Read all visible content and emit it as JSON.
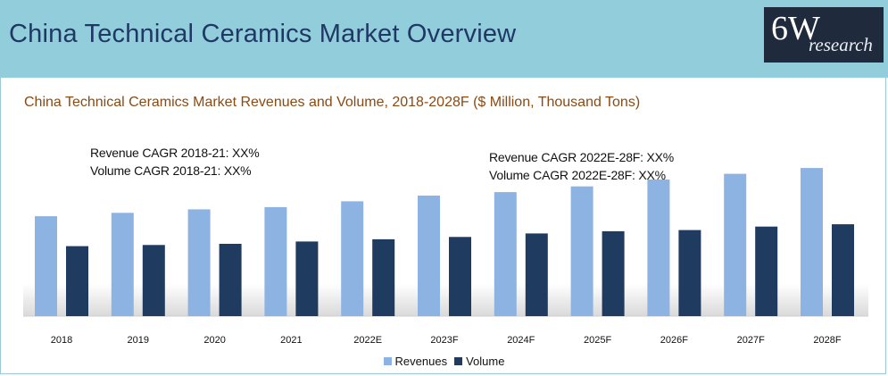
{
  "header": {
    "title": "China Technical Ceramics Market Overview",
    "logo_main": "6W",
    "logo_sub": "research"
  },
  "annotations": {
    "left_line1": "Revenue CAGR 2018-21: XX%",
    "left_line2": "Volume CAGR 2018-21: XX%",
    "right_line1": "Revenue CAGR 2022E-28F: XX%",
    "right_line2": "Volume CAGR 2022E-28F: XX%"
  },
  "colors": {
    "header_bg": "#92cddc",
    "revenues": "#8db3e2",
    "volume": "#1f3b5f"
  },
  "chart_data": {
    "type": "bar",
    "title": "China Technical Ceramics Market Revenues and Volume, 2018-2028F  ($ Million, Thousand Tons)",
    "categories": [
      "2018",
      "2019",
      "2020",
      "2021",
      "2022E",
      "2023F",
      "2024F",
      "2025F",
      "2026F",
      "2027F",
      "2028F"
    ],
    "series": [
      {
        "name": "Revenues",
        "values": [
          87,
          90,
          93,
          95,
          100,
          105,
          108,
          113,
          119,
          124,
          129
        ]
      },
      {
        "name": "Volume",
        "values": [
          61,
          62,
          63,
          65,
          67,
          69,
          72,
          74,
          75,
          78,
          80
        ]
      }
    ],
    "ylim": [
      0,
      140
    ],
    "xlabel": "",
    "ylabel": "",
    "legend": "bottom-center"
  }
}
